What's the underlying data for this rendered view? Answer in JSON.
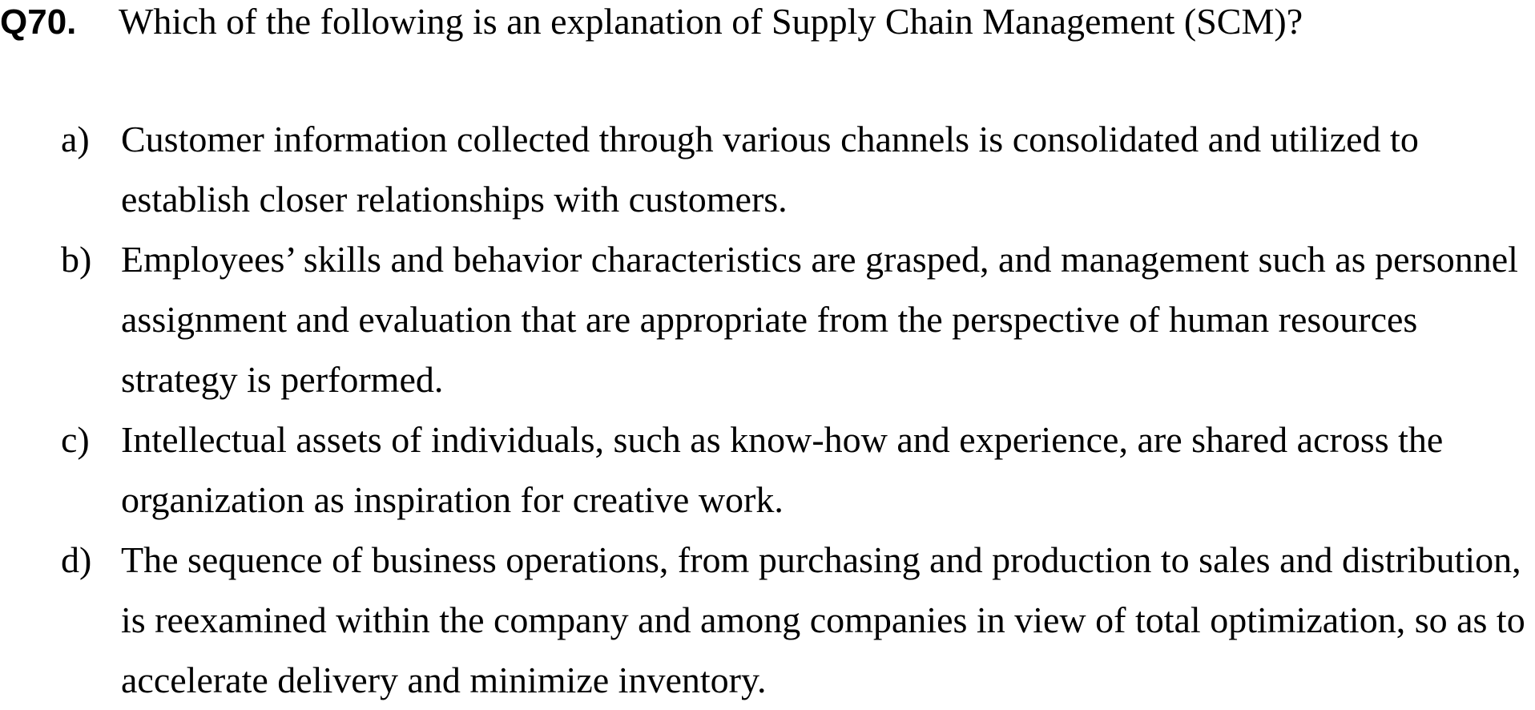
{
  "question": {
    "number": "Q70.",
    "text": "Which of the following is an explanation of Supply Chain Management (SCM)?"
  },
  "options": [
    {
      "letter": "a)",
      "text": "Customer information collected through various channels is consolidated and utilized to establish closer relationships with customers."
    },
    {
      "letter": "b)",
      "text": "Employees’ skills and behavior characteristics are grasped, and management such as personnel assignment and evaluation that are appropriate from the perspective of human resources strategy is performed."
    },
    {
      "letter": "c)",
      "text": "Intellectual assets of individuals, such as know-how and experience, are shared across the organization as inspiration for creative work."
    },
    {
      "letter": "d)",
      "text": "The sequence of business operations, from purchasing and production to sales and distribution, is reexamined within the company and among companies in view of total optimization, so as to accelerate delivery and minimize inventory."
    }
  ]
}
